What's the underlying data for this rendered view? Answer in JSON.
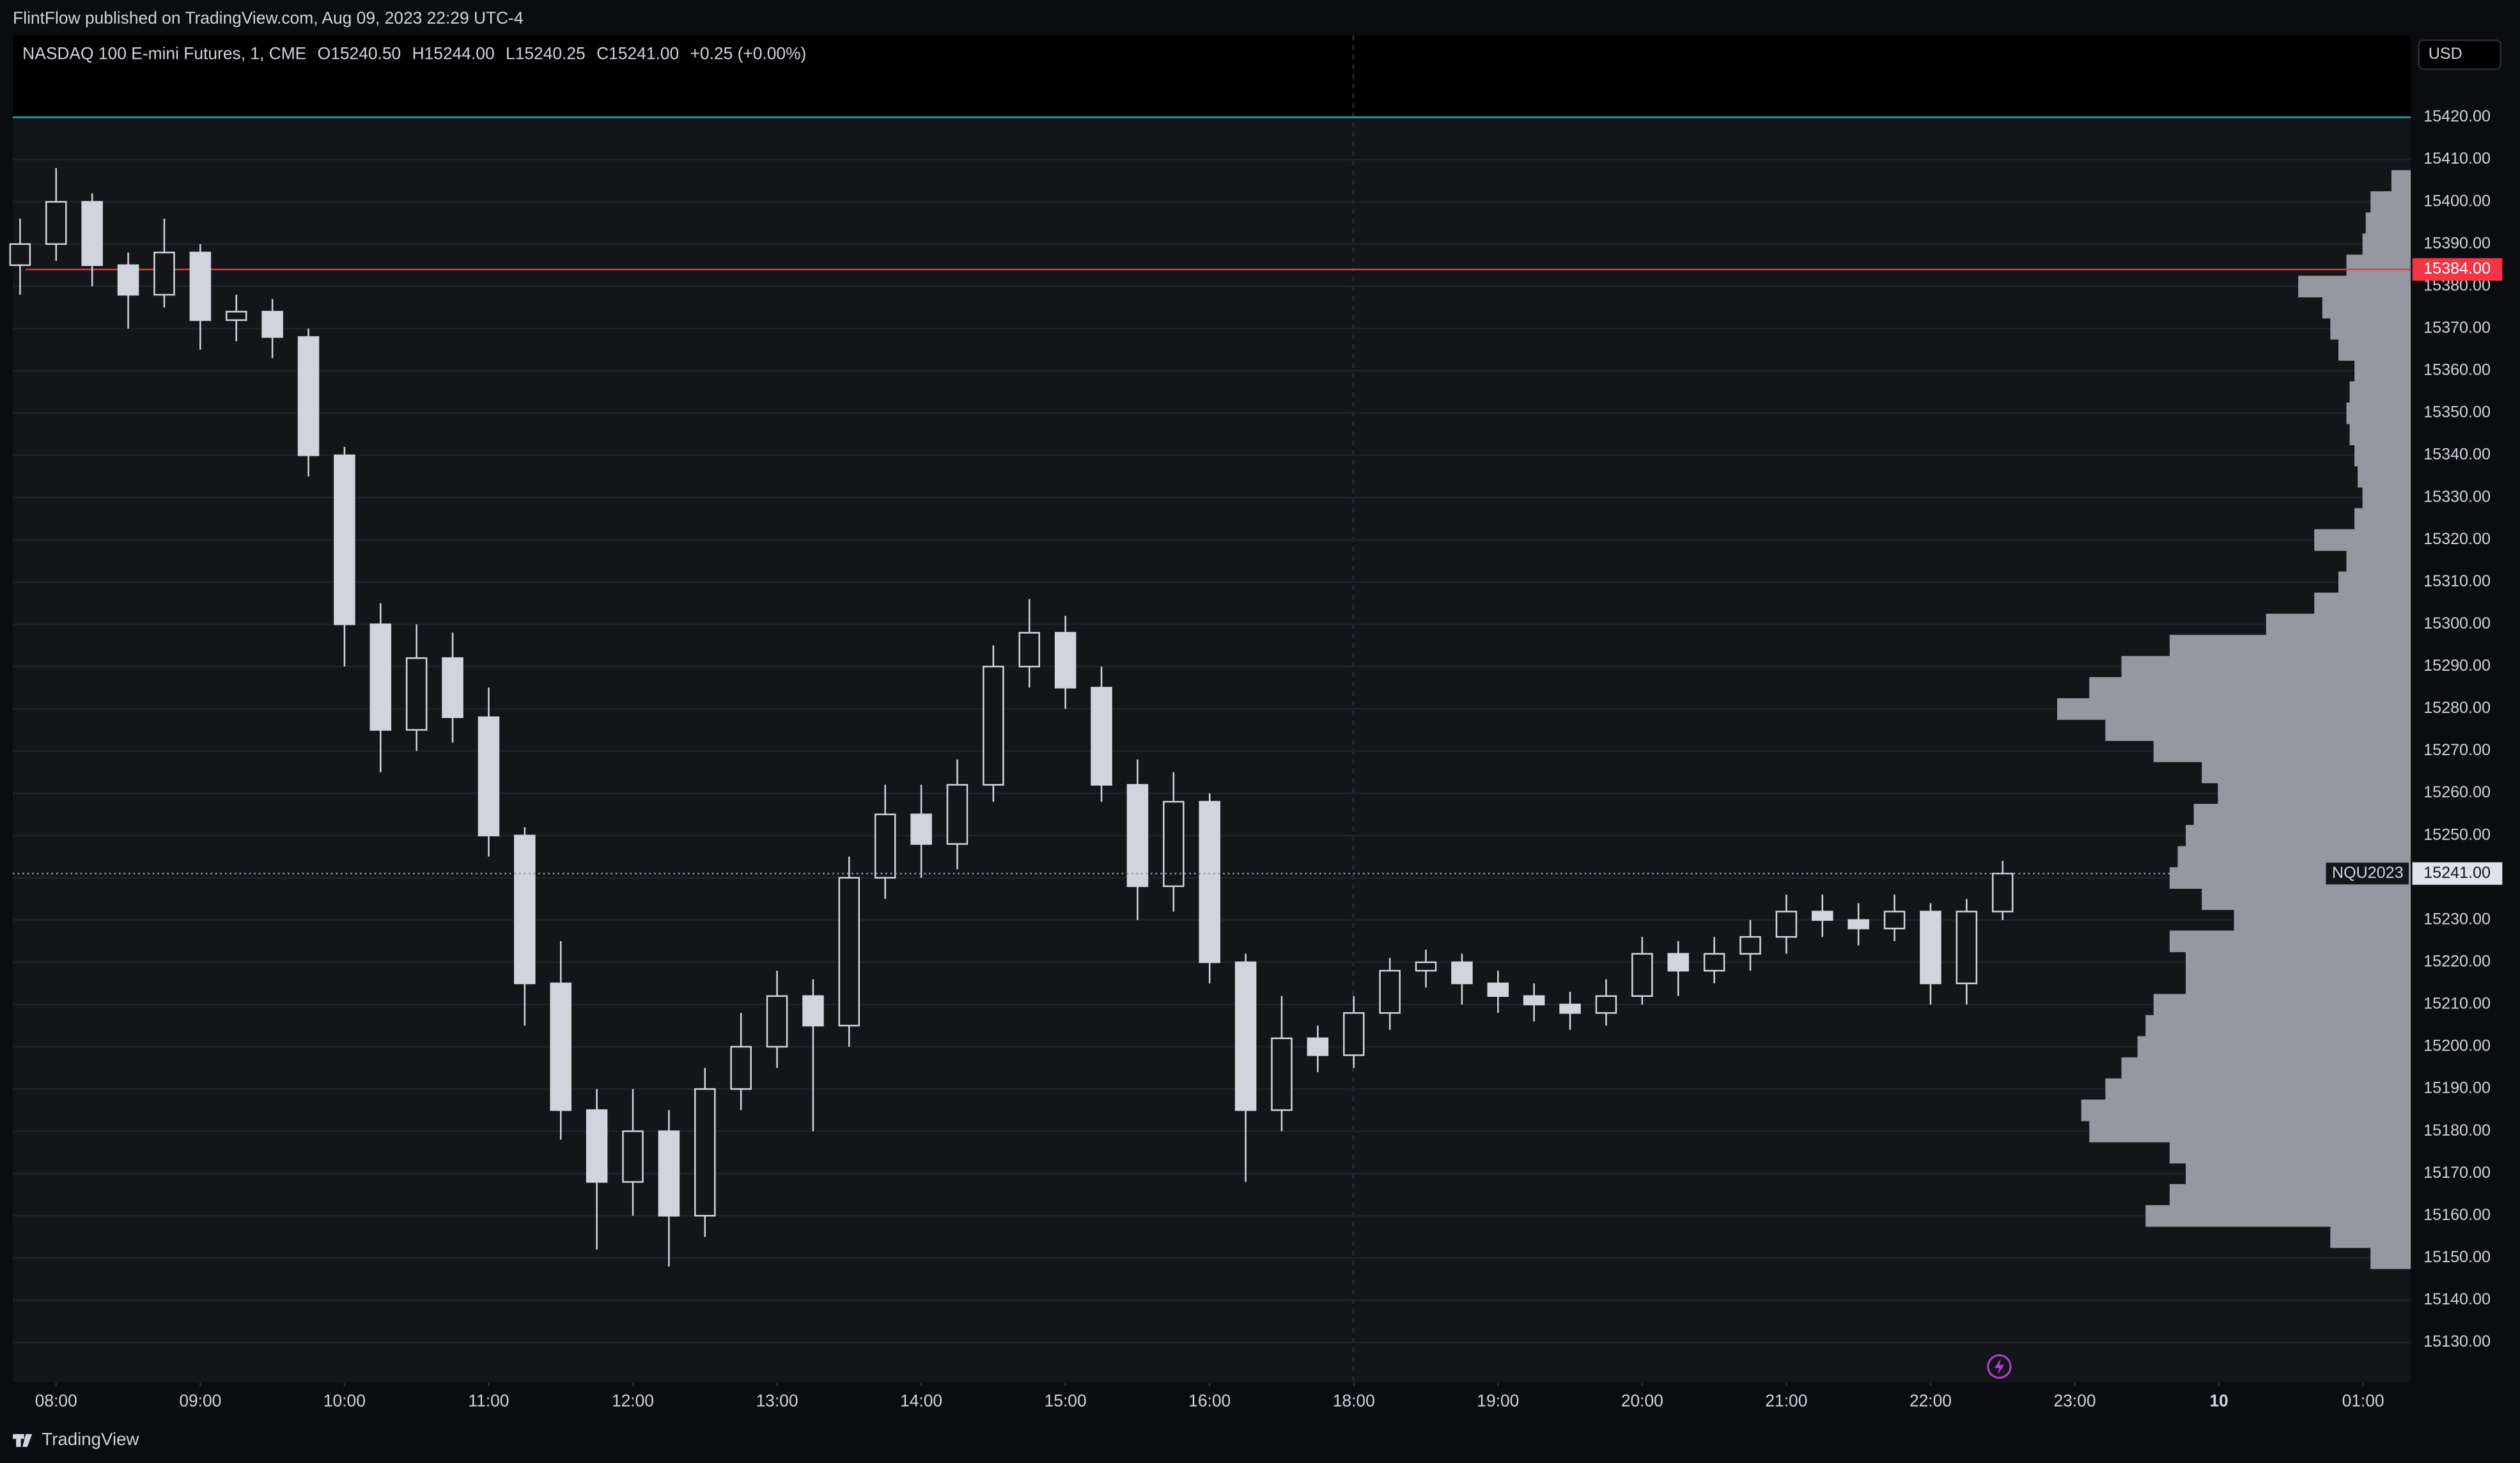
{
  "header": {
    "publisher": "FlintFlow published on TradingView.com, Aug 09, 2023 22:29 UTC-4",
    "footer": "TradingView",
    "currency": "USD"
  },
  "chart_data": {
    "type": "candlestick",
    "legend": {
      "symbol": "NASDAQ 100 E-mini Futures, 1, CME",
      "open": "O15240.50",
      "high": "H15244.00",
      "low": "L15240.25",
      "close": "C15241.00",
      "change": "+0.25 (+0.00%)"
    },
    "x": [
      7.75,
      8,
      8.25,
      8.5,
      8.75,
      9,
      9.25,
      9.5,
      9.75,
      10,
      10.25,
      10.5,
      10.75,
      11,
      11.25,
      11.5,
      11.75,
      12,
      12.25,
      12.5,
      12.75,
      13,
      13.25,
      13.5,
      13.75,
      14,
      14.25,
      14.5,
      14.75,
      15,
      15.25,
      15.5,
      15.75,
      16,
      16.25,
      16.5,
      16.75,
      17,
      17.25,
      17.5,
      17.75,
      18,
      18.25,
      18.5,
      18.75,
      19,
      19.25,
      19.5,
      19.75,
      20,
      20.25,
      20.5,
      20.75,
      21,
      21.25,
      21.5
    ],
    "open": [
      15385,
      15390,
      15400,
      15385,
      15378,
      15388,
      15372,
      15374,
      15368,
      15340,
      15300,
      15275,
      15292,
      15278,
      15250,
      15215,
      15185,
      15168,
      15180,
      15160,
      15190,
      15200,
      15212,
      15205,
      15240,
      15255,
      15248,
      15262,
      15290,
      15298,
      15285,
      15262,
      15238,
      15258,
      15220,
      15185,
      15202,
      15198,
      15208,
      15218,
      15220,
      15215,
      15212,
      15210,
      15208,
      15212,
      15222,
      15218,
      15222,
      15226,
      15232,
      15230,
      15228,
      15232,
      15215,
      15232
    ],
    "high": [
      15396,
      15408,
      15402,
      15388,
      15396,
      15390,
      15378,
      15377,
      15370,
      15342,
      15305,
      15300,
      15298,
      15285,
      15252,
      15225,
      15190,
      15190,
      15185,
      15195,
      15208,
      15218,
      15216,
      15245,
      15262,
      15262,
      15268,
      15295,
      15306,
      15302,
      15290,
      15268,
      15265,
      15260,
      15222,
      15212,
      15205,
      15212,
      15221,
      15223,
      15222,
      15218,
      15215,
      15213,
      15216,
      15226,
      15225,
      15226,
      15230,
      15236,
      15236,
      15234,
      15236,
      15234,
      15235,
      15244
    ],
    "low": [
      15378,
      15386,
      15380,
      15370,
      15375,
      15365,
      15367,
      15363,
      15335,
      15290,
      15265,
      15270,
      15272,
      15245,
      15205,
      15178,
      15152,
      15160,
      15148,
      15155,
      15185,
      15195,
      15180,
      15200,
      15235,
      15240,
      15242,
      15258,
      15285,
      15280,
      15258,
      15230,
      15232,
      15215,
      15168,
      15180,
      15194,
      15195,
      15204,
      15214,
      15210,
      15208,
      15206,
      15204,
      15205,
      15210,
      15212,
      15215,
      15218,
      15222,
      15226,
      15224,
      15225,
      15210,
      15210,
      15230
    ],
    "close": [
      15390,
      15400,
      15385,
      15378,
      15388,
      15372,
      15374,
      15368,
      15340,
      15300,
      15275,
      15292,
      15278,
      15250,
      15215,
      15185,
      15168,
      15180,
      15160,
      15190,
      15200,
      15212,
      15205,
      15240,
      15255,
      15248,
      15262,
      15290,
      15298,
      15285,
      15262,
      15238,
      15258,
      15220,
      15185,
      15202,
      15198,
      15208,
      15218,
      15220,
      15215,
      15212,
      15210,
      15208,
      15212,
      15222,
      15218,
      15222,
      15226,
      15232,
      15230,
      15228,
      15232,
      15215,
      15232,
      15241
    ],
    "color": "#d1d4dc",
    "xlim": [
      7.7,
      24.33
    ],
    "xticks": [
      {
        "value": 8,
        "label": "08:00"
      },
      {
        "value": 9,
        "label": "09:00"
      },
      {
        "value": 10,
        "label": "10:00"
      },
      {
        "value": 11,
        "label": "11:00"
      },
      {
        "value": 12,
        "label": "12:00"
      },
      {
        "value": 13,
        "label": "13:00"
      },
      {
        "value": 14,
        "label": "14:00"
      },
      {
        "value": 15,
        "label": "15:00"
      },
      {
        "value": 16,
        "label": "16:00"
      },
      {
        "value": 17,
        "label": "18:00"
      },
      {
        "value": 18,
        "label": "19:00"
      },
      {
        "value": 19,
        "label": "20:00"
      },
      {
        "value": 20,
        "label": "21:00"
      },
      {
        "value": 21,
        "label": "22:00"
      },
      {
        "value": 22,
        "label": "23:00"
      },
      {
        "value": 23,
        "label": "10"
      },
      {
        "value": 24,
        "label": "01:00"
      }
    ],
    "ylim": [
      15120.5,
      15439.4
    ],
    "yticks": [
      {
        "value": 15130,
        "label": "15130.00"
      },
      {
        "value": 15140,
        "label": "15140.00"
      },
      {
        "value": 15150,
        "label": "15150.00"
      },
      {
        "value": 15160,
        "label": "15160.00"
      },
      {
        "value": 15170,
        "label": "15170.00"
      },
      {
        "value": 15180,
        "label": "15180.00"
      },
      {
        "value": 15190,
        "label": "15190.00"
      },
      {
        "value": 15200,
        "label": "15200.00"
      },
      {
        "value": 15210,
        "label": "15210.00"
      },
      {
        "value": 15220,
        "label": "15220.00"
      },
      {
        "value": 15230,
        "label": "15230.00"
      },
      {
        "value": 15240,
        "label": "15240.00"
      },
      {
        "value": 15250,
        "label": "15250.00"
      },
      {
        "value": 15260,
        "label": "15260.00"
      },
      {
        "value": 15270,
        "label": "15270.00"
      },
      {
        "value": 15280,
        "label": "15280.00"
      },
      {
        "value": 15290,
        "label": "15290.00"
      },
      {
        "value": 15300,
        "label": "15300.00"
      },
      {
        "value": 15310,
        "label": "15310.00"
      },
      {
        "value": 15320,
        "label": "15320.00"
      },
      {
        "value": 15330,
        "label": "15330.00"
      },
      {
        "value": 15340,
        "label": "15340.00"
      },
      {
        "value": 15350,
        "label": "15350.00"
      },
      {
        "value": 15360,
        "label": "15360.00"
      },
      {
        "value": 15370,
        "label": "15370.00"
      },
      {
        "value": 15380,
        "label": "15380.00"
      },
      {
        "value": 15390,
        "label": "15390.00"
      },
      {
        "value": 15400,
        "label": "15400.00"
      },
      {
        "value": 15410,
        "label": "15410.00"
      },
      {
        "value": 15420,
        "label": "15420.00"
      }
    ],
    "grid": true,
    "hlines": [
      {
        "value": 15420,
        "color": "#26a69a"
      },
      {
        "value": 15384,
        "label": "15384.00",
        "color": "#f23645"
      }
    ],
    "last_price": {
      "value": 15241,
      "label": "15241.00",
      "symbol": "NQU2023"
    },
    "volume_profile": {
      "color": "#9598a1",
      "prices": [
        15150,
        15155,
        15160,
        15165,
        15170,
        15175,
        15180,
        15185,
        15190,
        15195,
        15200,
        15205,
        15210,
        15215,
        15220,
        15225,
        15230,
        15235,
        15240,
        15245,
        15250,
        15255,
        15260,
        15265,
        15270,
        15275,
        15280,
        15285,
        15290,
        15295,
        15300,
        15305,
        15310,
        15315,
        15320,
        15325,
        15330,
        15335,
        15340,
        15345,
        15350,
        15355,
        15360,
        15365,
        15370,
        15375,
        15380,
        15385,
        15390,
        15395,
        15400,
        15405
      ],
      "values": [
        25,
        50,
        165,
        150,
        140,
        150,
        200,
        205,
        190,
        180,
        170,
        165,
        160,
        140,
        140,
        150,
        110,
        130,
        150,
        145,
        140,
        135,
        120,
        130,
        160,
        190,
        220,
        200,
        180,
        150,
        90,
        60,
        45,
        40,
        60,
        35,
        30,
        33,
        35,
        38,
        40,
        38,
        35,
        45,
        50,
        55,
        70,
        40,
        30,
        28,
        25,
        12
      ]
    }
  }
}
